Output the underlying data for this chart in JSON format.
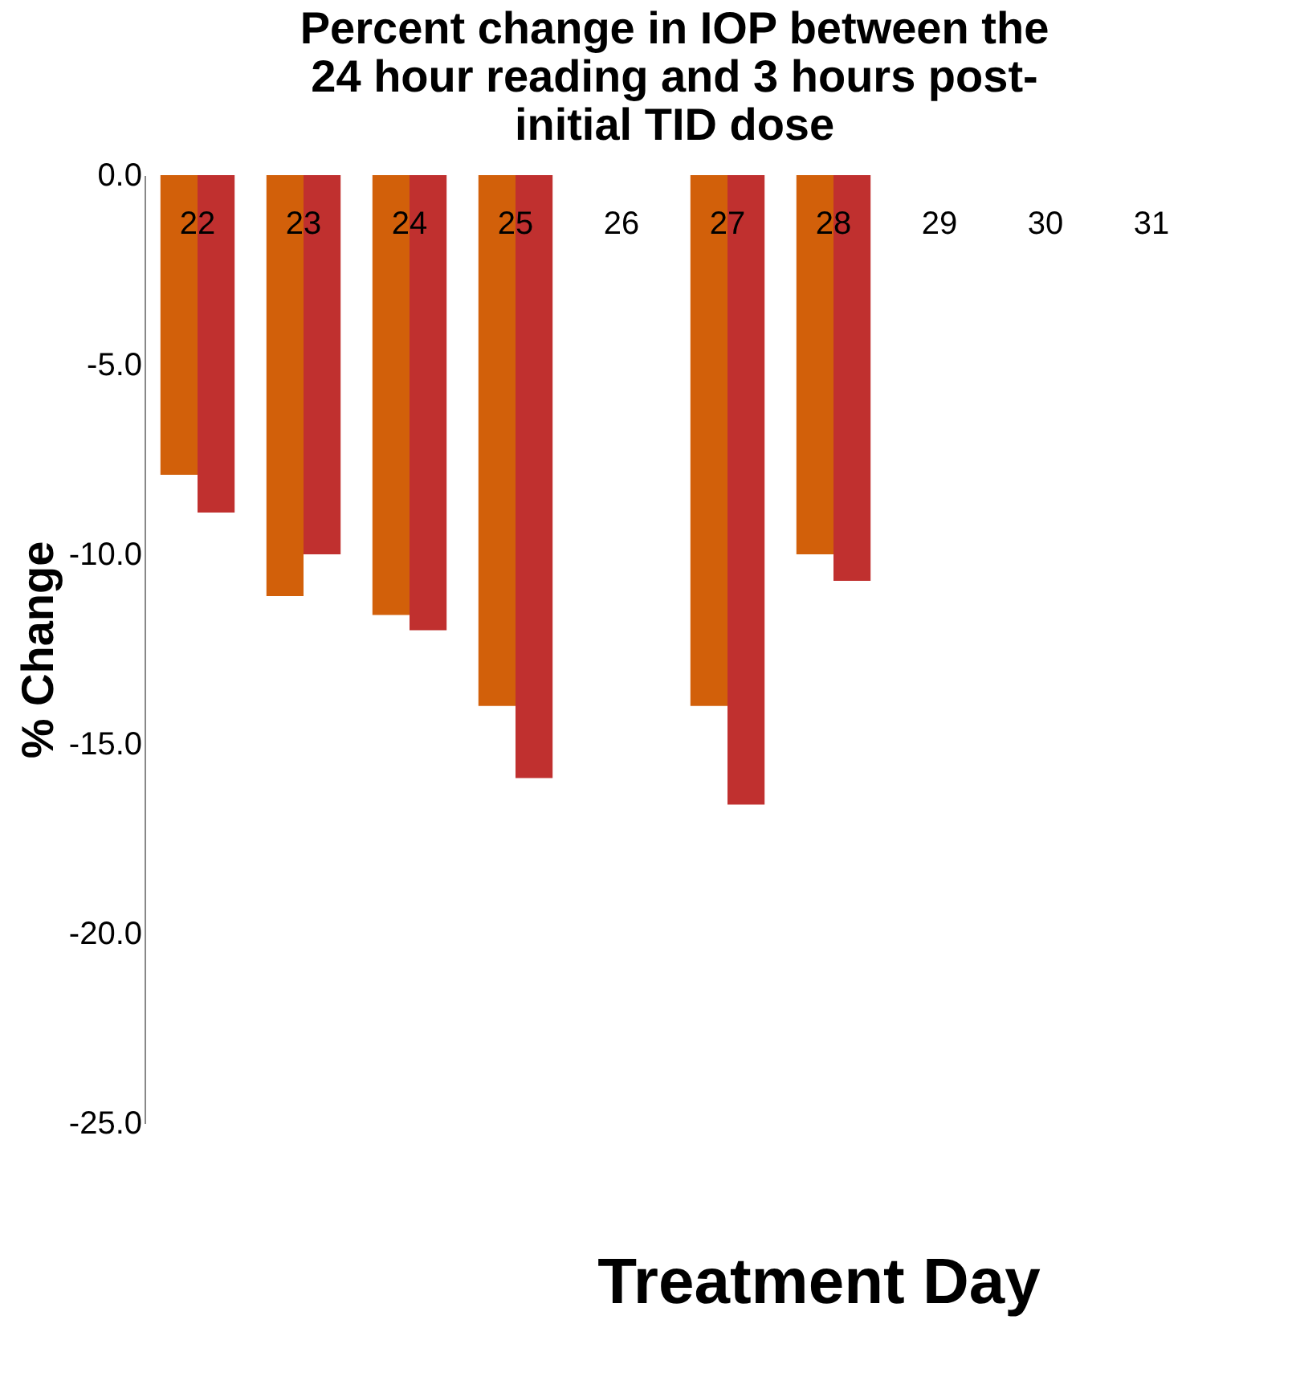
{
  "chart_data": {
    "type": "bar",
    "title": [
      "Percent change in IOP between the",
      "24 hour reading and 3 hours post-",
      "initial TID dose"
    ],
    "xlabel": "Treatment Day",
    "ylabel": "% Change",
    "categories": [
      "22",
      "23",
      "24",
      "25",
      "26",
      "27",
      "28",
      "29",
      "30",
      "31"
    ],
    "series": [
      {
        "color": "#d2600a",
        "values": [
          -7.9,
          -11.1,
          -11.6,
          -14.0,
          null,
          -14.0,
          -10.0,
          null,
          null,
          null
        ]
      },
      {
        "color": "#c0302f",
        "values": [
          -8.9,
          -10.0,
          -12.0,
          -15.9,
          null,
          -16.6,
          -10.7,
          null,
          null,
          null
        ]
      }
    ],
    "ylim": [
      -25,
      0
    ],
    "yticks": [
      {
        "value": 0,
        "label": "0.0"
      },
      {
        "value": -5,
        "label": "-5.0"
      },
      {
        "value": -10,
        "label": "-10.0"
      },
      {
        "value": -15,
        "label": "-15.0"
      },
      {
        "value": -20,
        "label": "-20.0"
      },
      {
        "value": -25,
        "label": "-25.0"
      }
    ],
    "grid": false,
    "legend": false
  }
}
